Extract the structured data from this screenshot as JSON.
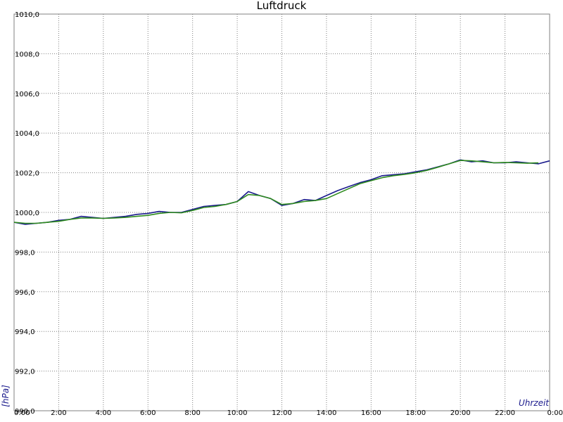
{
  "chart_data": {
    "type": "line",
    "title": "Luftdruck",
    "xlabel": "Uhrzeit",
    "ylabel": "[hPa]",
    "xlim": [
      0,
      24
    ],
    "ylim": [
      990,
      1010
    ],
    "grid": true,
    "y_ticks": [
      {
        "value": 990,
        "label": "990,0"
      },
      {
        "value": 992,
        "label": "992,0"
      },
      {
        "value": 994,
        "label": "994,0"
      },
      {
        "value": 996,
        "label": "996,0"
      },
      {
        "value": 998,
        "label": "998,0"
      },
      {
        "value": 1000,
        "label": "1000,0"
      },
      {
        "value": 1002,
        "label": "1002,0"
      },
      {
        "value": 1004,
        "label": "1004,0"
      },
      {
        "value": 1006,
        "label": "1006,0"
      },
      {
        "value": 1008,
        "label": "1008,0"
      },
      {
        "value": 1010,
        "label": "1010,0"
      }
    ],
    "x_ticks": [
      {
        "value": 0,
        "label": "0:00"
      },
      {
        "value": 2,
        "label": "2:00"
      },
      {
        "value": 4,
        "label": "4:00"
      },
      {
        "value": 6,
        "label": "6:00"
      },
      {
        "value": 8,
        "label": "8:00"
      },
      {
        "value": 10,
        "label": "10:00"
      },
      {
        "value": 12,
        "label": "12:00"
      },
      {
        "value": 14,
        "label": "14:00"
      },
      {
        "value": 16,
        "label": "16:00"
      },
      {
        "value": 18,
        "label": "18:00"
      },
      {
        "value": 20,
        "label": "20:00"
      },
      {
        "value": 22,
        "label": "22:00"
      },
      {
        "value": 24,
        "label": "0:00"
      }
    ],
    "series": [
      {
        "color": "#1a1a8c",
        "x": [
          0,
          0.5,
          1,
          1.5,
          2,
          2.5,
          3,
          3.5,
          4,
          4.5,
          5,
          5.5,
          6,
          6.5,
          7,
          7.5,
          8,
          8.5,
          9,
          9.5,
          10,
          10.5,
          11,
          11.5,
          12,
          12.5,
          13,
          13.5,
          14,
          14.5,
          15,
          15.5,
          16,
          16.5,
          17,
          17.5,
          18,
          18.5,
          19,
          19.5,
          20,
          20.5,
          21,
          21.5,
          22,
          22.5,
          23,
          23.5,
          24
        ],
        "y": [
          999.5,
          999.4,
          999.45,
          999.5,
          999.6,
          999.65,
          999.8,
          999.75,
          999.7,
          999.75,
          999.8,
          999.9,
          999.95,
          1000.05,
          1000.0,
          1000.0,
          1000.15,
          1000.3,
          1000.35,
          1000.4,
          1000.55,
          1001.05,
          1000.85,
          1000.7,
          1000.35,
          1000.45,
          1000.65,
          1000.6,
          1000.85,
          1001.1,
          1001.3,
          1001.5,
          1001.65,
          1001.85,
          1001.9,
          1001.95,
          1002.05,
          1002.15,
          1002.3,
          1002.45,
          1002.65,
          1002.55,
          1002.6,
          1002.5,
          1002.5,
          1002.55,
          1002.5,
          1002.45,
          1002.6
        ]
      },
      {
        "color": "#2e8b1e",
        "x": [
          0,
          0.5,
          1,
          1.5,
          2,
          2.5,
          3,
          3.5,
          4,
          4.5,
          5,
          5.5,
          6,
          6.5,
          7,
          7.5,
          8,
          8.5,
          9,
          9.5,
          10,
          10.5,
          11,
          11.5,
          12,
          12.5,
          13,
          13.5,
          14,
          14.5,
          15,
          15.5,
          16,
          16.5,
          17,
          17.5,
          18,
          18.5,
          19,
          19.5,
          20,
          20.5,
          21,
          21.5,
          22,
          22.5,
          23,
          23.5
        ],
        "y": [
          999.5,
          999.45,
          999.45,
          999.5,
          999.55,
          999.65,
          999.72,
          999.72,
          999.7,
          999.72,
          999.75,
          999.8,
          999.85,
          999.95,
          1000.0,
          999.98,
          1000.1,
          1000.25,
          1000.3,
          1000.4,
          1000.55,
          1000.9,
          1000.85,
          1000.7,
          1000.4,
          1000.45,
          1000.55,
          1000.6,
          1000.7,
          1000.95,
          1001.2,
          1001.45,
          1001.6,
          1001.75,
          1001.85,
          1001.92,
          1002.0,
          1002.12,
          1002.28,
          1002.45,
          1002.62,
          1002.6,
          1002.55,
          1002.5,
          1002.52,
          1002.5,
          1002.48,
          1002.5
        ]
      }
    ]
  }
}
